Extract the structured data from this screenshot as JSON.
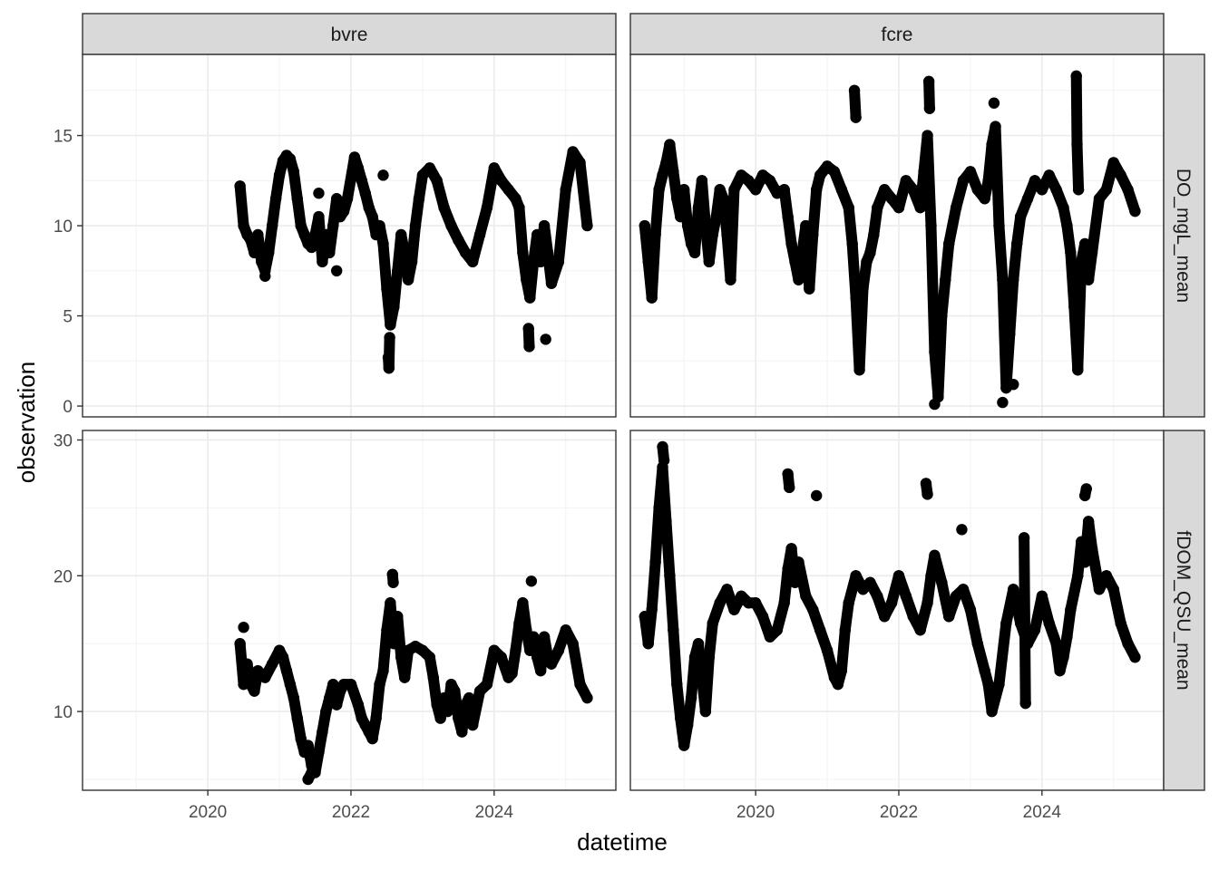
{
  "chart_data": {
    "type": "scatter",
    "xlabel": "datetime",
    "ylabel": "observation",
    "x_ticks": [
      "2020",
      "2022",
      "2024"
    ],
    "x_range": [
      2018.25,
      2025.7
    ],
    "columns": [
      "bvre",
      "fcre"
    ],
    "rows": [
      {
        "name": "DO_mgL_mean",
        "ylim": [
          -0.6,
          19.5
        ],
        "y_ticks": [
          0,
          5,
          10,
          15
        ]
      },
      {
        "name": "fDOM_QSU_mean",
        "ylim": [
          4.2,
          30.7
        ],
        "y_ticks": [
          10,
          20,
          30
        ]
      }
    ],
    "point_color": "#000000",
    "grid": true,
    "panels": [
      {
        "column": "bvre",
        "row": "DO_mgL_mean",
        "series": {
          "x": [
            2020.45,
            2020.5,
            2020.55,
            2020.6,
            2020.65,
            2020.7,
            2020.75,
            2020.8,
            2020.85,
            2020.9,
            2020.95,
            2021.0,
            2021.05,
            2021.1,
            2021.15,
            2021.2,
            2021.25,
            2021.3,
            2021.35,
            2021.4,
            2021.45,
            2021.5,
            2021.55,
            2021.6,
            2021.65,
            2021.7,
            2021.75,
            2021.8,
            2021.85,
            2021.9,
            2021.95,
            2022.05,
            2022.1,
            2022.15,
            2022.2,
            2022.25,
            2022.3,
            2022.35,
            2022.4,
            2022.45,
            2022.5,
            2022.55,
            2022.6,
            2022.65,
            2022.7,
            2022.75,
            2022.8,
            2022.85,
            2022.9,
            2022.95,
            2023.0,
            2023.1,
            2023.2,
            2023.3,
            2023.4,
            2023.5,
            2023.6,
            2023.7,
            2023.8,
            2023.9,
            2024.0,
            2024.1,
            2024.2,
            2024.3,
            2024.35,
            2024.4,
            2024.45,
            2024.5,
            2024.55,
            2024.6,
            2024.65,
            2024.7,
            2024.75,
            2024.8,
            2024.9,
            2025.0,
            2025.1,
            2025.2,
            2025.3,
            2022.52,
            2022.53,
            2022.54,
            2024.48,
            2024.49,
            2024.72,
            2020.8,
            2021.55,
            2021.8,
            2022.45
          ],
          "y": [
            12.2,
            10.0,
            9.5,
            9.2,
            8.5,
            9.5,
            8.0,
            7.5,
            8.5,
            10.0,
            11.5,
            12.8,
            13.6,
            13.9,
            13.7,
            13.0,
            11.5,
            10.0,
            9.5,
            9.0,
            8.8,
            9.5,
            10.5,
            8.0,
            9.5,
            8.5,
            10.0,
            11.5,
            10.5,
            10.8,
            11.5,
            13.8,
            13.2,
            12.5,
            11.8,
            11.0,
            10.5,
            9.5,
            10.0,
            9.0,
            6.5,
            4.5,
            5.5,
            7.5,
            9.5,
            8.5,
            7.0,
            8.0,
            10.0,
            11.5,
            12.8,
            13.2,
            12.5,
            11.0,
            10.0,
            9.2,
            8.5,
            8.0,
            9.5,
            11.0,
            13.2,
            12.5,
            12.0,
            11.5,
            11.0,
            8.5,
            7.0,
            6.0,
            8.0,
            9.5,
            8.0,
            10.0,
            8.5,
            6.8,
            8.0,
            12.0,
            14.1,
            13.5,
            10.0,
            2.7,
            2.1,
            3.8,
            4.3,
            3.3,
            3.7,
            7.2,
            11.8,
            7.5,
            12.8
          ]
        }
      },
      {
        "column": "fcre",
        "row": "DO_mgL_mean",
        "series": {
          "x": [
            2018.45,
            2018.5,
            2018.55,
            2018.6,
            2018.65,
            2018.7,
            2018.75,
            2018.8,
            2018.85,
            2018.9,
            2018.95,
            2019.0,
            2019.05,
            2019.1,
            2019.15,
            2019.2,
            2019.25,
            2019.3,
            2019.35,
            2019.4,
            2019.45,
            2019.5,
            2019.55,
            2019.6,
            2019.65,
            2019.7,
            2019.8,
            2019.9,
            2020.0,
            2020.1,
            2020.2,
            2020.3,
            2020.4,
            2020.45,
            2020.5,
            2020.55,
            2020.6,
            2020.65,
            2020.7,
            2020.75,
            2020.8,
            2020.85,
            2020.9,
            2021.0,
            2021.1,
            2021.2,
            2021.3,
            2021.35,
            2021.4,
            2021.45,
            2021.5,
            2021.55,
            2021.6,
            2021.65,
            2021.7,
            2021.8,
            2021.9,
            2022.0,
            2022.1,
            2022.2,
            2022.3,
            2022.35,
            2022.4,
            2022.45,
            2022.5,
            2022.55,
            2022.6,
            2022.65,
            2022.7,
            2022.8,
            2022.9,
            2023.0,
            2023.1,
            2023.2,
            2023.25,
            2023.3,
            2023.35,
            2023.4,
            2023.45,
            2023.5,
            2023.55,
            2023.6,
            2023.65,
            2023.7,
            2023.8,
            2023.9,
            2024.0,
            2024.1,
            2024.2,
            2024.3,
            2024.35,
            2024.4,
            2024.45,
            2024.5,
            2024.55,
            2024.6,
            2024.65,
            2024.7,
            2024.8,
            2024.9,
            2025.0,
            2025.1,
            2025.2,
            2025.3,
            2021.38,
            2021.4,
            2022.42,
            2022.43,
            2023.33,
            2024.48,
            2024.49,
            2024.51,
            2023.45,
            2022.5,
            2023.6
          ],
          "y": [
            10.0,
            8.0,
            6.0,
            9.5,
            12.0,
            12.8,
            13.5,
            14.5,
            13.0,
            11.5,
            10.5,
            12.0,
            10.0,
            9.0,
            8.5,
            11.0,
            12.5,
            10.0,
            8.0,
            9.5,
            10.5,
            12.0,
            11.5,
            9.5,
            7.0,
            12.0,
            12.8,
            12.5,
            12.0,
            12.8,
            12.5,
            11.8,
            12.0,
            10.5,
            9.0,
            8.0,
            7.0,
            8.5,
            10.0,
            6.5,
            9.5,
            12.0,
            12.8,
            13.3,
            13.0,
            12.0,
            11.0,
            9.0,
            6.0,
            2.0,
            6.5,
            8.0,
            8.5,
            9.5,
            11.0,
            12.0,
            11.5,
            11.0,
            12.5,
            12.0,
            11.0,
            13.0,
            15.0,
            10.0,
            3.0,
            0.5,
            5.0,
            7.0,
            9.0,
            11.0,
            12.5,
            13.0,
            12.0,
            11.5,
            12.5,
            14.5,
            15.5,
            10.0,
            7.0,
            1.0,
            4.0,
            7.0,
            9.0,
            10.5,
            11.5,
            12.5,
            12.0,
            12.8,
            12.0,
            11.0,
            10.0,
            8.5,
            5.5,
            2.0,
            8.0,
            9.0,
            7.0,
            8.5,
            11.5,
            12.0,
            13.5,
            12.8,
            12.0,
            10.8,
            17.5,
            16.0,
            18.0,
            16.5,
            16.8,
            18.3,
            14.5,
            12.0,
            0.2,
            0.1,
            1.2
          ]
        }
      },
      {
        "column": "bvre",
        "row": "fDOM_QSU_mean",
        "series": {
          "x": [
            2020.45,
            2020.5,
            2020.55,
            2020.6,
            2020.65,
            2020.7,
            2020.8,
            2020.9,
            2021.0,
            2021.05,
            2021.1,
            2021.15,
            2021.2,
            2021.25,
            2021.3,
            2021.35,
            2021.4,
            2021.45,
            2021.5,
            2021.55,
            2021.6,
            2021.65,
            2021.7,
            2021.75,
            2021.8,
            2021.85,
            2021.9,
            2022.0,
            2022.1,
            2022.15,
            2022.2,
            2022.25,
            2022.3,
            2022.35,
            2022.4,
            2022.45,
            2022.5,
            2022.55,
            2022.6,
            2022.65,
            2022.7,
            2022.75,
            2022.8,
            2022.9,
            2023.0,
            2023.1,
            2023.15,
            2023.2,
            2023.25,
            2023.3,
            2023.35,
            2023.4,
            2023.45,
            2023.5,
            2023.55,
            2023.6,
            2023.65,
            2023.7,
            2023.8,
            2023.9,
            2024.0,
            2024.1,
            2024.2,
            2024.25,
            2024.3,
            2024.35,
            2024.4,
            2024.45,
            2024.5,
            2024.55,
            2024.6,
            2024.65,
            2024.7,
            2024.75,
            2024.8,
            2024.9,
            2025.0,
            2025.1,
            2025.2,
            2025.3,
            2020.5,
            2021.4,
            2021.45,
            2022.58,
            2022.59,
            2024.52
          ],
          "y": [
            15.0,
            12.0,
            13.5,
            12.0,
            11.5,
            13.0,
            12.5,
            13.5,
            14.5,
            14.0,
            13.0,
            12.0,
            11.0,
            9.5,
            8.0,
            7.0,
            7.5,
            6.0,
            5.5,
            7.0,
            8.5,
            10.0,
            11.0,
            12.0,
            10.5,
            11.5,
            12.0,
            12.0,
            10.5,
            9.5,
            9.0,
            8.5,
            8.0,
            9.5,
            12.0,
            13.0,
            16.0,
            18.0,
            15.0,
            17.0,
            14.0,
            12.5,
            14.5,
            14.8,
            14.5,
            14.0,
            12.5,
            10.5,
            9.5,
            11.0,
            10.0,
            12.0,
            11.5,
            9.5,
            8.5,
            10.5,
            11.0,
            9.0,
            11.5,
            12.0,
            14.5,
            14.0,
            12.5,
            12.8,
            14.5,
            16.5,
            18.0,
            16.0,
            14.5,
            15.5,
            14.0,
            13.0,
            15.5,
            14.0,
            13.5,
            14.5,
            16.0,
            15.0,
            12.0,
            11.0,
            16.2,
            5.0,
            5.5,
            20.1,
            19.5,
            19.6
          ]
        }
      },
      {
        "column": "fcre",
        "row": "fDOM_QSU_mean",
        "series": {
          "x": [
            2018.45,
            2018.5,
            2018.55,
            2018.6,
            2018.65,
            2018.7,
            2018.75,
            2018.8,
            2018.85,
            2018.9,
            2018.95,
            2019.0,
            2019.05,
            2019.1,
            2019.15,
            2019.2,
            2019.25,
            2019.3,
            2019.35,
            2019.4,
            2019.5,
            2019.6,
            2019.7,
            2019.8,
            2019.9,
            2020.0,
            2020.1,
            2020.2,
            2020.3,
            2020.4,
            2020.45,
            2020.5,
            2020.55,
            2020.6,
            2020.7,
            2020.8,
            2020.9,
            2021.0,
            2021.1,
            2021.15,
            2021.2,
            2021.25,
            2021.3,
            2021.4,
            2021.5,
            2021.6,
            2021.7,
            2021.8,
            2021.9,
            2022.0,
            2022.1,
            2022.2,
            2022.3,
            2022.4,
            2022.45,
            2022.5,
            2022.6,
            2022.7,
            2022.8,
            2022.9,
            2023.0,
            2023.1,
            2023.2,
            2023.25,
            2023.3,
            2023.4,
            2023.5,
            2023.6,
            2023.7,
            2023.8,
            2023.9,
            2024.0,
            2024.1,
            2024.2,
            2024.25,
            2024.3,
            2024.35,
            2024.4,
            2024.5,
            2024.55,
            2024.6,
            2024.65,
            2024.7,
            2024.8,
            2024.9,
            2025.0,
            2025.1,
            2025.2,
            2025.3,
            2018.7,
            2018.72,
            2020.45,
            2020.47,
            2020.85,
            2022.38,
            2022.4,
            2022.88,
            2023.75,
            2023.77,
            2024.6,
            2024.62
          ],
          "y": [
            17.0,
            15.0,
            17.5,
            21.0,
            25.0,
            28.0,
            24.0,
            20.0,
            16.0,
            12.0,
            9.5,
            7.5,
            9.0,
            11.0,
            14.0,
            15.0,
            12.5,
            10.0,
            14.0,
            16.5,
            18.0,
            19.0,
            17.5,
            18.5,
            18.0,
            18.0,
            17.0,
            15.5,
            16.0,
            18.0,
            20.5,
            22.0,
            19.5,
            21.0,
            18.5,
            17.5,
            16.0,
            14.5,
            12.5,
            12.0,
            13.0,
            16.0,
            18.0,
            20.0,
            19.0,
            19.5,
            18.5,
            17.0,
            18.0,
            20.0,
            18.5,
            17.0,
            16.0,
            18.0,
            20.0,
            21.5,
            19.5,
            17.0,
            18.5,
            19.0,
            17.5,
            15.0,
            13.0,
            12.0,
            10.0,
            12.0,
            16.5,
            19.0,
            16.5,
            15.0,
            16.0,
            18.5,
            16.5,
            15.0,
            13.0,
            14.0,
            15.5,
            17.5,
            20.0,
            22.5,
            21.0,
            24.0,
            22.0,
            19.0,
            20.0,
            19.0,
            16.5,
            15.0,
            14.0,
            29.5,
            28.5,
            27.5,
            26.5,
            25.9,
            26.8,
            26.0,
            23.4,
            22.8,
            10.6,
            25.9,
            26.4
          ]
        }
      }
    ]
  }
}
